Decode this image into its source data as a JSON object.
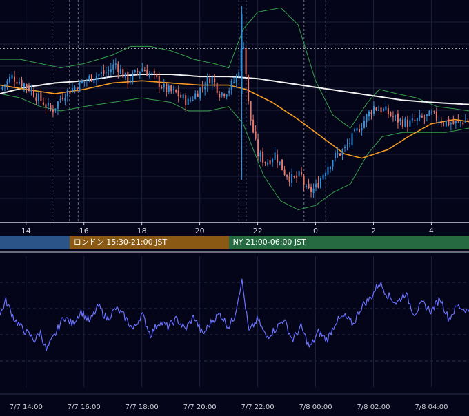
{
  "theme": {
    "background": "#05051a",
    "grid": "#1c1f3a",
    "axis_text": "#d0d0d8",
    "candle_up": "#2f8fd8",
    "candle_down": "#e8786a",
    "bollinger": "#35a04a",
    "ma_short": "#f59a23",
    "ma_long": "#f2f2f2",
    "oscillator": "#6b72ff",
    "divider": "#cfd2de"
  },
  "sessions": [
    {
      "name": "tokyo",
      "label": "",
      "color": "#2b5588"
    },
    {
      "name": "london",
      "label": "ロンドン 15:30-21:00 JST",
      "color": "#8a5a14"
    },
    {
      "name": "newyork",
      "label": "NY 21:00-06:00 JST",
      "color": "#256a40"
    }
  ],
  "chart_data": {
    "type": "candlestick",
    "main_panel": {
      "x_tick_labels": [
        "14",
        "16",
        "18",
        "20",
        "22",
        "0",
        "2",
        "4"
      ],
      "x_tick_hours": [
        14,
        16,
        18,
        20,
        22,
        24,
        26,
        28
      ],
      "x_range_hours": [
        13.1,
        29.3
      ],
      "session_times": [
        {
          "name": "tokyo",
          "start": 13.1,
          "end": 15.5
        },
        {
          "name": "london",
          "start": 15.5,
          "end": 21.0
        },
        {
          "name": "newyork",
          "start": 21.0,
          "end": 29.3
        }
      ],
      "vertical_markers_hours": [
        14.9,
        15.5,
        15.8,
        21.35,
        21.6,
        23.6,
        24.35
      ],
      "y_range": [
        0,
        100
      ],
      "reference_level": 79,
      "anchors_close": [
        [
          13.1,
          60
        ],
        [
          13.5,
          66
        ],
        [
          14.0,
          62
        ],
        [
          14.5,
          55
        ],
        [
          14.9,
          50
        ],
        [
          15.3,
          58
        ],
        [
          15.8,
          62
        ],
        [
          16.3,
          66
        ],
        [
          16.8,
          68
        ],
        [
          17.1,
          72
        ],
        [
          17.5,
          64
        ],
        [
          18.0,
          70
        ],
        [
          18.4,
          66
        ],
        [
          18.8,
          60
        ],
        [
          19.2,
          58
        ],
        [
          19.6,
          54
        ],
        [
          20.0,
          60
        ],
        [
          20.4,
          66
        ],
        [
          20.7,
          58
        ],
        [
          21.0,
          60
        ],
        [
          21.3,
          66
        ],
        [
          21.5,
          84
        ],
        [
          21.7,
          50
        ],
        [
          22.0,
          30
        ],
        [
          22.3,
          26
        ],
        [
          22.6,
          30
        ],
        [
          22.9,
          22
        ],
        [
          23.2,
          18
        ],
        [
          23.5,
          20
        ],
        [
          23.7,
          12
        ],
        [
          24.0,
          14
        ],
        [
          24.3,
          22
        ],
        [
          24.6,
          28
        ],
        [
          25.0,
          32
        ],
        [
          25.4,
          40
        ],
        [
          25.8,
          48
        ],
        [
          26.0,
          52
        ],
        [
          26.4,
          50
        ],
        [
          26.8,
          46
        ],
        [
          27.2,
          44
        ],
        [
          27.6,
          46
        ],
        [
          28.0,
          48
        ],
        [
          28.4,
          45
        ],
        [
          28.8,
          44
        ],
        [
          29.3,
          46
        ]
      ],
      "anchors_ma_short": [
        [
          13.1,
          62
        ],
        [
          14.0,
          60
        ],
        [
          15.0,
          58
        ],
        [
          16.0,
          60
        ],
        [
          17.0,
          63
        ],
        [
          18.0,
          64
        ],
        [
          19.0,
          63
        ],
        [
          20.0,
          62
        ],
        [
          21.0,
          62
        ],
        [
          21.6,
          60
        ],
        [
          22.5,
          54
        ],
        [
          23.4,
          46
        ],
        [
          24.2,
          38
        ],
        [
          25.0,
          30
        ],
        [
          25.6,
          28
        ],
        [
          26.5,
          32
        ],
        [
          27.2,
          38
        ],
        [
          28.0,
          44
        ],
        [
          28.8,
          46
        ],
        [
          29.3,
          45
        ]
      ],
      "anchors_ma_long": [
        [
          13.1,
          58
        ],
        [
          14.0,
          61
        ],
        [
          15.0,
          63
        ],
        [
          16.0,
          64
        ],
        [
          17.0,
          66
        ],
        [
          18.0,
          67
        ],
        [
          19.0,
          67
        ],
        [
          20.0,
          66
        ],
        [
          21.0,
          66
        ],
        [
          22.0,
          65
        ],
        [
          23.0,
          63
        ],
        [
          24.0,
          61
        ],
        [
          25.0,
          59
        ],
        [
          26.0,
          57
        ],
        [
          27.0,
          55
        ],
        [
          28.0,
          54
        ],
        [
          29.3,
          53
        ]
      ],
      "anchors_bb_upper": [
        [
          13.1,
          74
        ],
        [
          13.8,
          74
        ],
        [
          14.5,
          72
        ],
        [
          15.2,
          70
        ],
        [
          16.0,
          72
        ],
        [
          17.0,
          76
        ],
        [
          17.6,
          80
        ],
        [
          18.3,
          80
        ],
        [
          19.0,
          78
        ],
        [
          19.8,
          74
        ],
        [
          20.5,
          72
        ],
        [
          21.0,
          70
        ],
        [
          21.5,
          88
        ],
        [
          22.0,
          96
        ],
        [
          22.8,
          98
        ],
        [
          23.4,
          90
        ],
        [
          24.0,
          64
        ],
        [
          24.6,
          48
        ],
        [
          25.2,
          42
        ],
        [
          25.8,
          54
        ],
        [
          26.2,
          60
        ],
        [
          26.8,
          58
        ],
        [
          27.5,
          56
        ],
        [
          28.2,
          52
        ],
        [
          28.8,
          51
        ],
        [
          29.3,
          50
        ]
      ],
      "anchors_bb_lower": [
        [
          13.1,
          58
        ],
        [
          13.8,
          56
        ],
        [
          14.5,
          52
        ],
        [
          15.2,
          50
        ],
        [
          16.0,
          52
        ],
        [
          17.0,
          54
        ],
        [
          18.0,
          56
        ],
        [
          19.0,
          54
        ],
        [
          19.6,
          50
        ],
        [
          20.3,
          50
        ],
        [
          21.0,
          52
        ],
        [
          21.5,
          44
        ],
        [
          22.2,
          20
        ],
        [
          22.8,
          8
        ],
        [
          23.4,
          4
        ],
        [
          24.0,
          6
        ],
        [
          24.6,
          12
        ],
        [
          25.2,
          16
        ],
        [
          25.8,
          30
        ],
        [
          26.3,
          38
        ],
        [
          27.0,
          40
        ],
        [
          27.8,
          40
        ],
        [
          28.5,
          40
        ],
        [
          29.3,
          42
        ]
      ],
      "spike": {
        "time": 21.45,
        "high": 99,
        "low": 18
      },
      "candle_step_hours": 0.0833
    },
    "oscillator_panel": {
      "y_range": [
        0,
        100
      ],
      "gridlines": [
        20,
        40,
        60,
        80
      ],
      "anchors": [
        [
          13.1,
          55
        ],
        [
          13.3,
          66
        ],
        [
          13.6,
          52
        ],
        [
          13.9,
          44
        ],
        [
          14.3,
          36
        ],
        [
          14.5,
          42
        ],
        [
          14.7,
          28
        ],
        [
          15.0,
          40
        ],
        [
          15.3,
          54
        ],
        [
          15.6,
          48
        ],
        [
          15.9,
          58
        ],
        [
          16.2,
          50
        ],
        [
          16.5,
          62
        ],
        [
          16.8,
          52
        ],
        [
          17.1,
          60
        ],
        [
          17.4,
          54
        ],
        [
          17.7,
          44
        ],
        [
          18.0,
          56
        ],
        [
          18.3,
          40
        ],
        [
          18.6,
          50
        ],
        [
          18.9,
          46
        ],
        [
          19.2,
          52
        ],
        [
          19.5,
          44
        ],
        [
          19.8,
          54
        ],
        [
          20.1,
          40
        ],
        [
          20.4,
          50
        ],
        [
          20.7,
          56
        ],
        [
          21.0,
          46
        ],
        [
          21.2,
          54
        ],
        [
          21.45,
          82
        ],
        [
          21.7,
          42
        ],
        [
          22.0,
          52
        ],
        [
          22.3,
          38
        ],
        [
          22.6,
          44
        ],
        [
          22.9,
          52
        ],
        [
          23.2,
          36
        ],
        [
          23.5,
          46
        ],
        [
          23.8,
          30
        ],
        [
          24.1,
          42
        ],
        [
          24.4,
          36
        ],
        [
          24.7,
          50
        ],
        [
          25.0,
          54
        ],
        [
          25.3,
          48
        ],
        [
          25.6,
          62
        ],
        [
          25.9,
          68
        ],
        [
          26.2,
          80
        ],
        [
          26.5,
          70
        ],
        [
          26.8,
          64
        ],
        [
          27.1,
          72
        ],
        [
          27.4,
          56
        ],
        [
          27.7,
          64
        ],
        [
          28.0,
          58
        ],
        [
          28.3,
          68
        ],
        [
          28.6,
          52
        ],
        [
          28.9,
          62
        ],
        [
          29.3,
          58
        ]
      ]
    },
    "bottom_axis": {
      "tick_labels": [
        "7/7 14:00",
        "7/7 16:00",
        "7/7 18:00",
        "7/7 20:00",
        "7/7 22:00",
        "7/8 00:00",
        "7/8 02:00",
        "7/8 04:00"
      ],
      "tick_hours": [
        14,
        16,
        18,
        20,
        22,
        24,
        26,
        28
      ]
    }
  }
}
